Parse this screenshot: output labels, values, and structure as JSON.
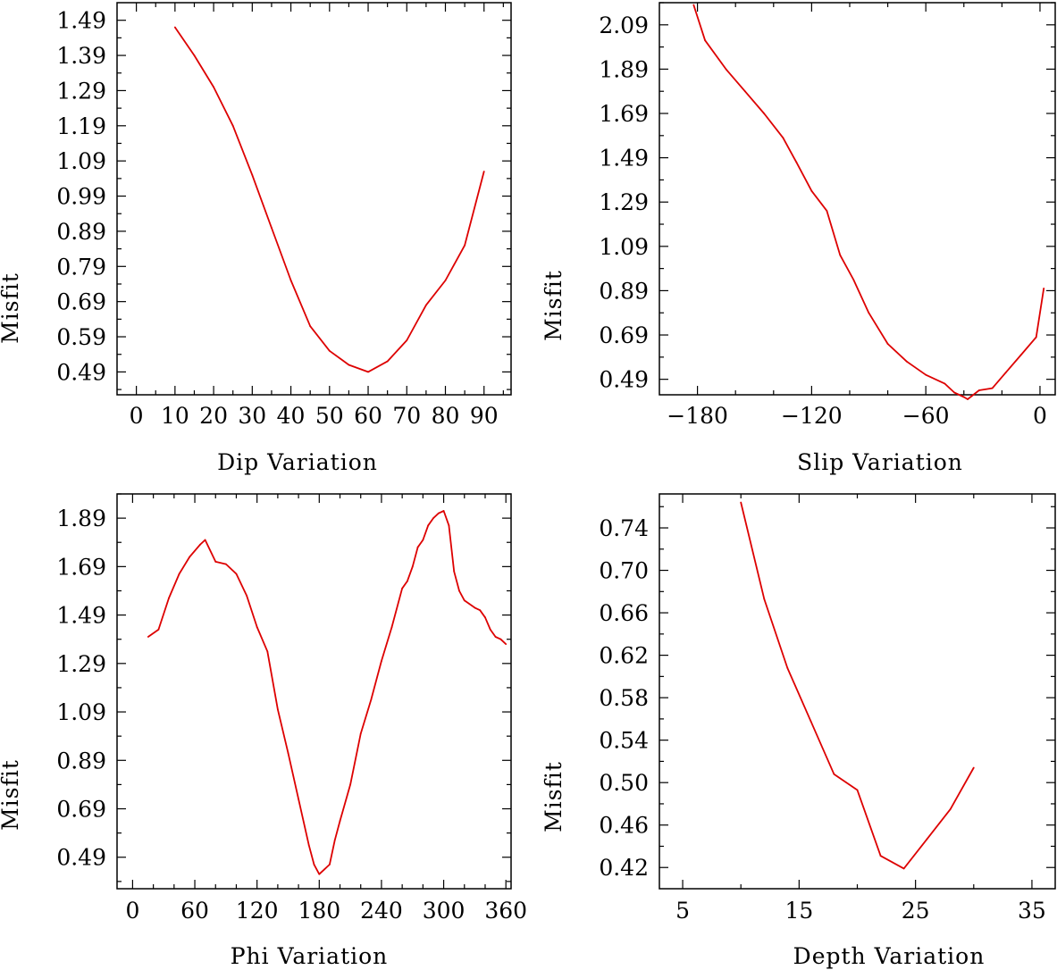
{
  "chart_data": [
    {
      "type": "line",
      "xlabel": "Dip    Variation",
      "ylabel": "Misfit",
      "xlim": [
        -5,
        97
      ],
      "ylim": [
        0.425,
        1.54
      ],
      "xticks": [
        0,
        10,
        20,
        30,
        40,
        50,
        60,
        70,
        80,
        90
      ],
      "xtick_labels": [
        "0",
        "10",
        "20",
        "30",
        "40",
        "50",
        "60",
        "70",
        "80",
        "90"
      ],
      "yticks": [
        0.49,
        0.59,
        0.69,
        0.79,
        0.89,
        0.99,
        1.09,
        1.19,
        1.29,
        1.39,
        1.49
      ],
      "ytick_labels": [
        "0.49",
        "0.59",
        "0.69",
        "0.79",
        "0.89",
        "0.99",
        "1.09",
        "1.19",
        "1.29",
        "1.39",
        "1.49"
      ],
      "series": [
        {
          "name": "misfit",
          "color": "#dd0000",
          "x": [
            10,
            15,
            20,
            25,
            30,
            35,
            40,
            45,
            50,
            55,
            60,
            65,
            70,
            75,
            80,
            85,
            90
          ],
          "y": [
            1.47,
            1.39,
            1.3,
            1.19,
            1.05,
            0.9,
            0.75,
            0.62,
            0.55,
            0.51,
            0.49,
            0.52,
            0.58,
            0.68,
            0.75,
            0.85,
            1.06
          ]
        }
      ]
    },
    {
      "type": "line",
      "xlabel": "Slip    Variation",
      "ylabel": "Misfit",
      "xlim": [
        -200,
        8
      ],
      "ylim": [
        0.42,
        2.19
      ],
      "xticks": [
        -180,
        -120,
        -60,
        0
      ],
      "xtick_labels": [
        "−180",
        "−120",
        "−60",
        "0"
      ],
      "yticks": [
        0.49,
        0.69,
        0.89,
        1.09,
        1.29,
        1.49,
        1.69,
        1.89,
        2.09
      ],
      "ytick_labels": [
        "0.49",
        "0.69",
        "0.89",
        "1.09",
        "1.29",
        "1.49",
        "1.69",
        "1.89",
        "2.09"
      ],
      "series": [
        {
          "name": "misfit",
          "color": "#dd0000",
          "x": [
            -182,
            -176,
            -165,
            -155,
            -145,
            -135,
            -128,
            -120,
            -112,
            -105,
            -98,
            -90,
            -80,
            -70,
            -60,
            -50,
            -45,
            -40,
            -38,
            -35,
            -32,
            -25,
            -18,
            -10,
            -2,
            2
          ],
          "y": [
            2.18,
            2.02,
            1.89,
            1.79,
            1.69,
            1.58,
            1.47,
            1.34,
            1.25,
            1.05,
            0.94,
            0.79,
            0.65,
            0.57,
            0.51,
            0.47,
            0.43,
            0.41,
            0.4,
            0.42,
            0.44,
            0.45,
            0.52,
            0.6,
            0.68,
            0.9
          ]
        }
      ]
    },
    {
      "type": "line",
      "xlabel": "Phi    Variation",
      "ylabel": "Misfit",
      "xlim": [
        -15,
        365
      ],
      "ylim": [
        0.36,
        1.99
      ],
      "xticks": [
        0,
        60,
        120,
        180,
        240,
        300,
        360
      ],
      "xtick_labels": [
        "0",
        "60",
        "120",
        "180",
        "240",
        "300",
        "360"
      ],
      "yticks": [
        0.49,
        0.69,
        0.89,
        1.09,
        1.29,
        1.49,
        1.69,
        1.89
      ],
      "ytick_labels": [
        "0.49",
        "0.69",
        "0.89",
        "1.09",
        "1.29",
        "1.49",
        "1.69",
        "1.89"
      ],
      "series": [
        {
          "name": "misfit",
          "color": "#dd0000",
          "x": [
            15,
            25,
            35,
            45,
            55,
            65,
            70,
            80,
            90,
            100,
            110,
            120,
            130,
            140,
            150,
            160,
            170,
            175,
            180,
            185,
            190,
            195,
            200,
            210,
            220,
            230,
            240,
            250,
            260,
            265,
            270,
            275,
            280,
            285,
            290,
            295,
            300,
            305,
            310,
            315,
            320,
            330,
            335,
            340,
            345,
            350,
            355,
            360
          ],
          "y": [
            1.4,
            1.43,
            1.56,
            1.66,
            1.73,
            1.78,
            1.8,
            1.71,
            1.7,
            1.66,
            1.57,
            1.44,
            1.34,
            1.1,
            0.92,
            0.73,
            0.54,
            0.46,
            0.42,
            0.44,
            0.46,
            0.56,
            0.64,
            0.79,
            1.0,
            1.14,
            1.3,
            1.44,
            1.6,
            1.63,
            1.69,
            1.77,
            1.8,
            1.86,
            1.89,
            1.91,
            1.92,
            1.86,
            1.67,
            1.59,
            1.55,
            1.52,
            1.51,
            1.48,
            1.43,
            1.4,
            1.39,
            1.37
          ]
        }
      ]
    },
    {
      "type": "line",
      "xlabel": "Depth  Variation",
      "ylabel": "Misfit",
      "xlim": [
        3,
        37
      ],
      "ylim": [
        0.4,
        0.772
      ],
      "xticks": [
        5,
        15,
        25,
        35
      ],
      "xtick_labels": [
        "5",
        "15",
        "25",
        "35"
      ],
      "yticks": [
        0.42,
        0.46,
        0.5,
        0.54,
        0.58,
        0.62,
        0.66,
        0.7,
        0.74
      ],
      "ytick_labels": [
        "0.42",
        "0.46",
        "0.50",
        "0.54",
        "0.58",
        "0.62",
        "0.66",
        "0.70",
        "0.74"
      ],
      "series": [
        {
          "name": "misfit",
          "color": "#dd0000",
          "x": [
            10,
            12,
            14,
            16,
            18,
            20,
            22,
            24,
            26,
            28,
            30
          ],
          "y": [
            0.764,
            0.673,
            0.608,
            0.558,
            0.508,
            0.493,
            0.431,
            0.419,
            0.447,
            0.475,
            0.514
          ]
        }
      ]
    }
  ]
}
